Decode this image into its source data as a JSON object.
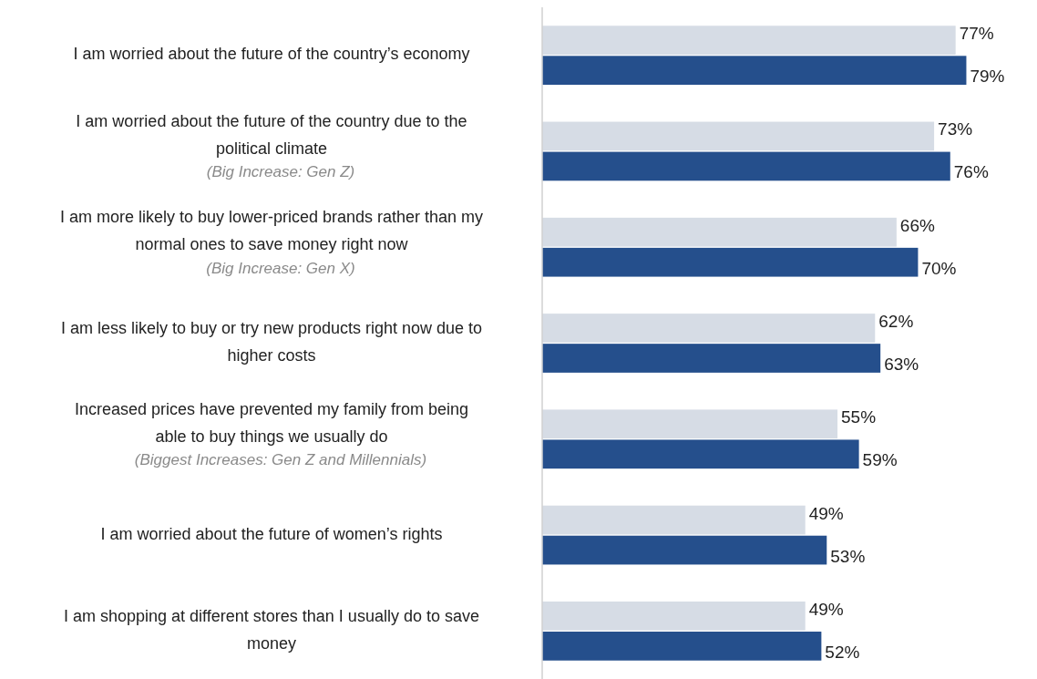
{
  "chart_data": {
    "type": "bar",
    "orientation": "horizontal",
    "tick_labels": "y",
    "categories": [
      "I am worried about the future of the country’s economy",
      "I am worried about the future of the country due to the political climate",
      "I am more likely to buy lower-priced brands rather than my normal ones to save money right now",
      "I am less likely to buy or try new products right now due to higher costs",
      "Increased prices have prevented my family from being able to buy things we usually do",
      "I am worried about the future of women’s rights",
      "I am shopping at different stores than I usually do to save money"
    ],
    "series": [
      {
        "color": "#d6dce5",
        "values": [
          77,
          73,
          66,
          62,
          55,
          49,
          49
        ],
        "value_labels": [
          "77%",
          "73%",
          "66%",
          "62%",
          "55%",
          "49%",
          "49%"
        ]
      },
      {
        "color": "#254f8c",
        "values": [
          79,
          76,
          70,
          63,
          59,
          53,
          52
        ],
        "value_labels": [
          "79%",
          "76%",
          "70%",
          "63%",
          "59%",
          "53%",
          "52%"
        ]
      }
    ],
    "annotations": [
      "(Big Increase: Gen Z)",
      "(Big Increase: Gen X)",
      "(Biggest Increases: Gen Z and Millennials)"
    ]
  }
}
